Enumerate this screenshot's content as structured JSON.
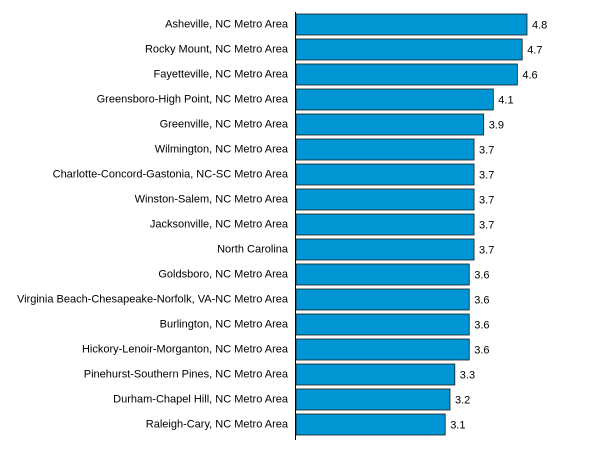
{
  "chart_data": {
    "type": "bar",
    "orientation": "horizontal",
    "categories": [
      "Asheville, NC Metro Area",
      "Rocky Mount, NC Metro Area",
      "Fayetteville, NC Metro Area",
      "Greensboro-High Point, NC Metro Area",
      "Greenville, NC Metro Area",
      "Wilmington, NC Metro Area",
      "Charlotte-Concord-Gastonia, NC-SC Metro Area",
      "Winston-Salem, NC Metro Area",
      "Jacksonville, NC Metro Area",
      "North Carolina",
      "Goldsboro, NC Metro Area",
      "Virginia Beach-Chesapeake-Norfolk, VA-NC Metro Area",
      "Burlington, NC Metro Area",
      "Hickory-Lenoir-Morganton, NC Metro Area",
      "Pinehurst-Southern Pines, NC Metro Area",
      "Durham-Chapel Hill, NC Metro Area",
      "Raleigh-Cary, NC Metro Area"
    ],
    "values": [
      4.8,
      4.7,
      4.6,
      4.1,
      3.9,
      3.7,
      3.7,
      3.7,
      3.7,
      3.7,
      3.6,
      3.6,
      3.6,
      3.6,
      3.3,
      3.2,
      3.1
    ],
    "value_labels": [
      "4.8",
      "4.7",
      "4.6",
      "4.1",
      "3.9",
      "3.7",
      "3.7",
      "3.7",
      "3.7",
      "3.7",
      "3.6",
      "3.6",
      "3.6",
      "3.6",
      "3.3",
      "3.2",
      "3.1"
    ],
    "xlim": [
      0,
      4.8
    ],
    "grid": false,
    "legend": "none",
    "bar_color": "#0096d6",
    "bar_edge_color": "#1a1a1a"
  }
}
